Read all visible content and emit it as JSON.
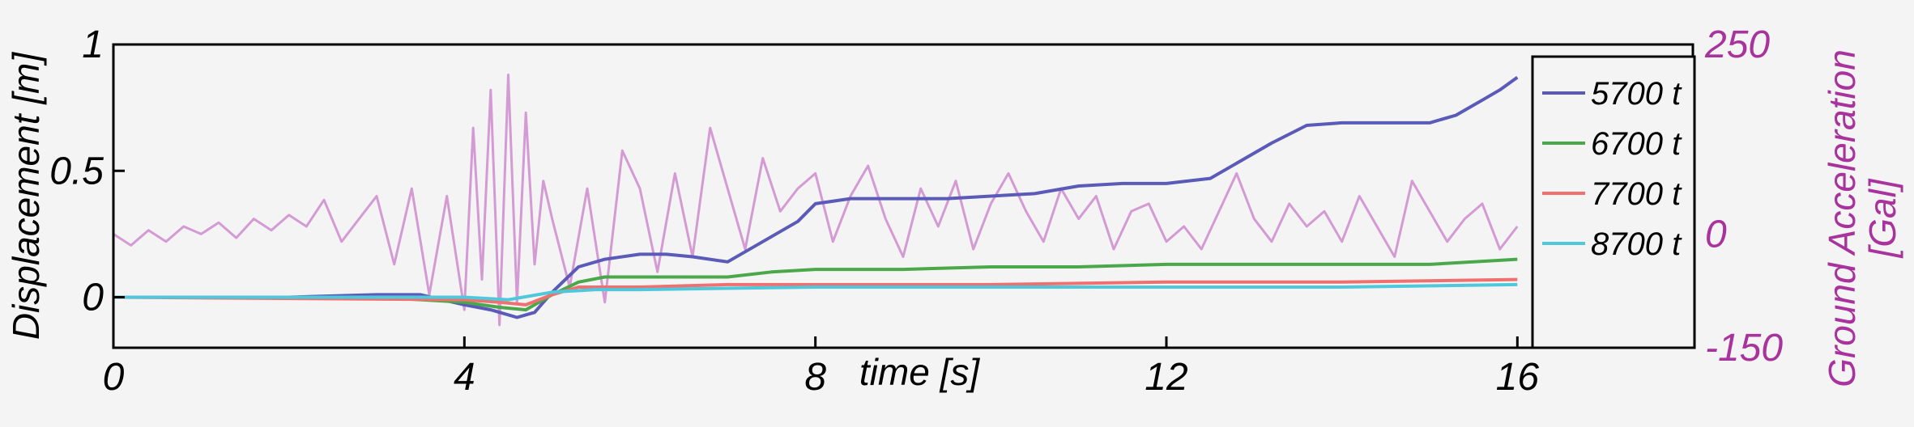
{
  "chart_data": {
    "type": "line",
    "title": "",
    "xlabel": "time [s]",
    "ylabel": "Displacement [m]",
    "y2label_line1": "Ground Acceleration",
    "y2label_line2": "[Gal]",
    "xlim": [
      0,
      18
    ],
    "ylim": [
      -0.2,
      1.0
    ],
    "y2lim": [
      -150,
      250
    ],
    "xticks": [
      0,
      4,
      8,
      12,
      16
    ],
    "xtick_labels": [
      "0",
      "4",
      "8",
      "12",
      "16"
    ],
    "yticks": [
      0,
      0.5,
      1
    ],
    "ytick_labels": [
      "0",
      "0.5",
      "1"
    ],
    "y2ticks": [
      -150,
      0,
      250
    ],
    "y2tick_labels": [
      "-150",
      "0",
      "250"
    ],
    "grid": false,
    "legend_position": "top-right",
    "colors": {
      "5700 t": "#5a5ab8",
      "6700 t": "#4aa84a",
      "7700 t": "#f07070",
      "8700 t": "#4fc8dc",
      "acceleration": "#d49ad4",
      "axis2": "#a8339c"
    },
    "series": [
      {
        "name": "5700 t",
        "x": [
          0,
          2,
          3,
          3.5,
          4,
          4.3,
          4.6,
          4.8,
          5.0,
          5.3,
          5.6,
          6.0,
          6.3,
          6.6,
          7.0,
          7.4,
          7.8,
          8.0,
          8.4,
          9.0,
          9.5,
          10.0,
          10.5,
          11.0,
          11.5,
          12.0,
          12.5,
          12.8,
          13.2,
          13.6,
          14.0,
          14.5,
          15.0,
          15.3,
          15.6,
          15.8,
          16.0
        ],
        "y": [
          0,
          0,
          0.01,
          0.01,
          -0.03,
          -0.05,
          -0.08,
          -0.06,
          0.02,
          0.12,
          0.15,
          0.17,
          0.17,
          0.16,
          0.14,
          0.22,
          0.3,
          0.37,
          0.39,
          0.39,
          0.39,
          0.4,
          0.41,
          0.44,
          0.45,
          0.45,
          0.47,
          0.53,
          0.61,
          0.68,
          0.69,
          0.69,
          0.69,
          0.72,
          0.78,
          0.82,
          0.87
        ]
      },
      {
        "name": "6700 t",
        "x": [
          0,
          3,
          4,
          4.4,
          4.7,
          5.0,
          5.3,
          5.6,
          6.0,
          6.5,
          7.0,
          7.5,
          8.0,
          9.0,
          10.0,
          11.0,
          12.0,
          13.0,
          14.0,
          15.0,
          15.5,
          16.0
        ],
        "y": [
          0,
          0,
          -0.02,
          -0.04,
          -0.05,
          0.01,
          0.06,
          0.08,
          0.08,
          0.08,
          0.08,
          0.1,
          0.11,
          0.11,
          0.12,
          0.12,
          0.13,
          0.13,
          0.13,
          0.13,
          0.14,
          0.15
        ]
      },
      {
        "name": "7700 t",
        "x": [
          0,
          4,
          4.4,
          4.7,
          5.0,
          5.3,
          6.0,
          7.0,
          8.0,
          10.0,
          12.0,
          14.0,
          16.0
        ],
        "y": [
          0,
          -0.01,
          -0.02,
          -0.03,
          0.01,
          0.04,
          0.04,
          0.05,
          0.05,
          0.05,
          0.06,
          0.06,
          0.07
        ]
      },
      {
        "name": "8700 t",
        "x": [
          0,
          4,
          4.5,
          5.0,
          5.5,
          6.0,
          8.0,
          10.0,
          12.0,
          14.0,
          16.0
        ],
        "y": [
          0,
          0,
          -0.01,
          0.02,
          0.03,
          0.03,
          0.04,
          0.04,
          0.04,
          0.04,
          0.05
        ]
      },
      {
        "name": "",
        "axis": "y2",
        "x": [
          0,
          0.2,
          0.4,
          0.6,
          0.8,
          1.0,
          1.2,
          1.4,
          1.6,
          1.8,
          2.0,
          2.2,
          2.4,
          2.6,
          2.8,
          3.0,
          3.2,
          3.4,
          3.6,
          3.8,
          4.0,
          4.1,
          4.2,
          4.3,
          4.4,
          4.5,
          4.6,
          4.7,
          4.8,
          4.9,
          5.0,
          5.2,
          5.4,
          5.6,
          5.8,
          6.0,
          6.2,
          6.4,
          6.6,
          6.8,
          7.0,
          7.2,
          7.4,
          7.6,
          7.8,
          8.0,
          8.2,
          8.4,
          8.6,
          8.8,
          9.0,
          9.2,
          9.4,
          9.6,
          9.8,
          10.0,
          10.2,
          10.4,
          10.6,
          10.8,
          11.0,
          11.2,
          11.4,
          11.6,
          11.8,
          12.0,
          12.2,
          12.4,
          12.6,
          12.8,
          13.0,
          13.2,
          13.4,
          13.6,
          13.8,
          14.0,
          14.2,
          14.4,
          14.6,
          14.8,
          15.0,
          15.2,
          15.4,
          15.6,
          15.8,
          16.0
        ],
        "y": [
          0,
          -15,
          5,
          -10,
          10,
          0,
          15,
          -5,
          20,
          5,
          25,
          10,
          45,
          -10,
          20,
          50,
          -40,
          60,
          -80,
          50,
          -100,
          140,
          -60,
          190,
          -120,
          210,
          -90,
          160,
          -40,
          70,
          20,
          -70,
          60,
          -90,
          110,
          60,
          -50,
          80,
          -30,
          140,
          60,
          -20,
          100,
          30,
          60,
          80,
          -10,
          50,
          90,
          20,
          -30,
          60,
          10,
          70,
          -20,
          40,
          80,
          30,
          -10,
          60,
          20,
          50,
          -20,
          30,
          40,
          -10,
          10,
          -20,
          30,
          80,
          20,
          -10,
          40,
          10,
          30,
          -10,
          50,
          10,
          -30,
          70,
          30,
          -10,
          20,
          40,
          -20,
          10
        ]
      }
    ]
  }
}
